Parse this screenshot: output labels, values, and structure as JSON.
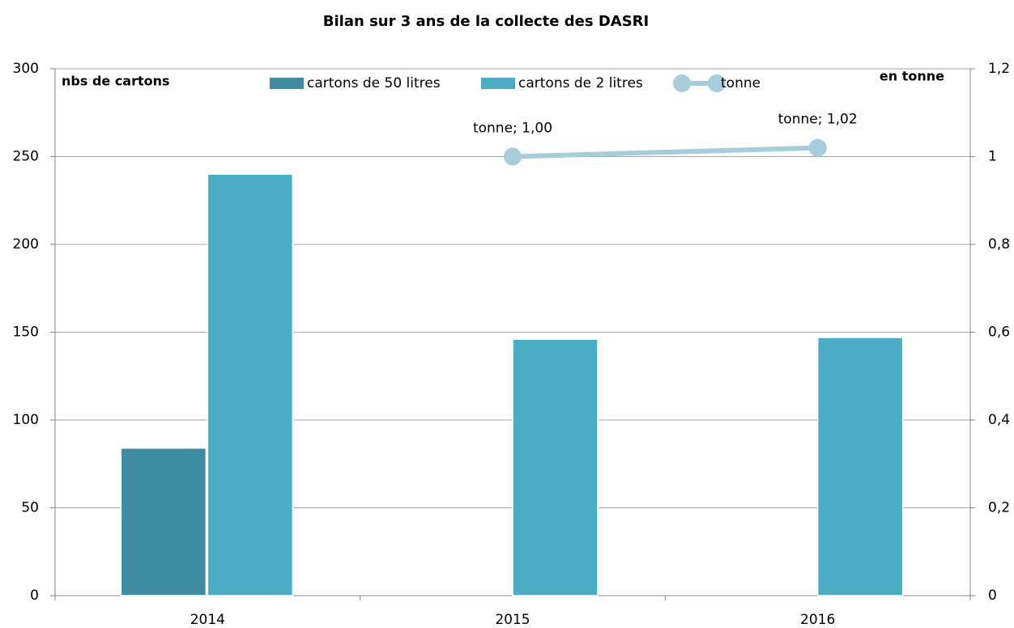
{
  "chart_data": {
    "type": "bar",
    "title": "Bilan sur 3 ans de la collecte des DASRI",
    "ylabel": "nbs de cartons",
    "y2label": "en tonne",
    "categories": [
      "2014",
      "2015",
      "2016"
    ],
    "series": [
      {
        "name": "cartons de 50 litres",
        "type": "bar",
        "color": "#3e8ba3",
        "values": [
          84,
          null,
          null
        ]
      },
      {
        "name": "cartons de 2 litres",
        "type": "bar",
        "color": "#4bacc6",
        "values": [
          240,
          146,
          147
        ]
      },
      {
        "name": "tonne",
        "type": "line",
        "axis": "y2",
        "color": "#a5cddb",
        "values": [
          null,
          1.0,
          1.02
        ],
        "value_labels": [
          null,
          "tonne; 1,00",
          "tonne; 1,02"
        ]
      }
    ],
    "ylim": [
      0,
      300
    ],
    "yticks": [
      0,
      50,
      100,
      150,
      200,
      250,
      300
    ],
    "y2lim": [
      0,
      1.2
    ],
    "y2ticks": [
      0,
      {
        "value": 0.2,
        "label": "0,2"
      },
      {
        "value": 0.4,
        "label": "0,4"
      },
      {
        "value": 0.6,
        "label": "0,6"
      },
      {
        "value": 0.8,
        "label": "0,8"
      },
      1,
      {
        "value": 1.2,
        "label": "1,2"
      }
    ],
    "grid": true,
    "legend": "top"
  }
}
